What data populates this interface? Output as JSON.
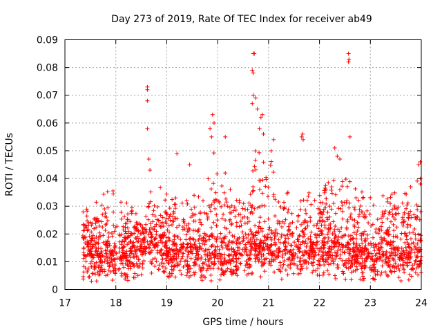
{
  "chart_data": {
    "type": "scatter",
    "title": "Day 273 of 2019, Rate Of TEC Index for receiver ab49",
    "xlabel": "GPS time / hours",
    "ylabel": "ROTI / TECUs",
    "xlim": [
      17,
      24
    ],
    "ylim": [
      0,
      0.09
    ],
    "x_ticks": [
      17,
      18,
      19,
      20,
      21,
      22,
      23,
      24
    ],
    "x_tick_labels": [
      "17",
      "18",
      "19",
      "20",
      "21",
      "22",
      "23",
      "24"
    ],
    "y_ticks": [
      0,
      0.01,
      0.02,
      0.03,
      0.04,
      0.05,
      0.06,
      0.07,
      0.08,
      0.09
    ],
    "y_tick_labels": [
      "0",
      "0.01",
      "0.02",
      "0.03",
      "0.04",
      "0.05",
      "0.06",
      "0.07",
      "0.08",
      "0.09"
    ],
    "grid": true,
    "marker": "+",
    "series": [
      {
        "name": "ROTI",
        "color": "#ff0000",
        "baseline_points": [
          [
            17.35,
            0.012
          ],
          [
            17.5,
            0.012
          ],
          [
            17.7,
            0.011
          ],
          [
            17.9,
            0.012
          ],
          [
            18.1,
            0.011
          ],
          [
            18.3,
            0.013
          ],
          [
            18.5,
            0.014
          ],
          [
            18.7,
            0.015
          ],
          [
            18.9,
            0.013
          ],
          [
            19.1,
            0.012
          ],
          [
            19.3,
            0.013
          ],
          [
            19.5,
            0.012
          ],
          [
            19.7,
            0.011
          ],
          [
            19.9,
            0.012
          ],
          [
            20.1,
            0.011
          ],
          [
            20.3,
            0.012
          ],
          [
            20.5,
            0.013
          ],
          [
            20.7,
            0.014
          ],
          [
            20.9,
            0.014
          ],
          [
            21.1,
            0.013
          ],
          [
            21.3,
            0.012
          ],
          [
            21.5,
            0.012
          ],
          [
            21.7,
            0.013
          ],
          [
            21.9,
            0.013
          ],
          [
            22.1,
            0.014
          ],
          [
            22.3,
            0.014
          ],
          [
            22.5,
            0.013
          ],
          [
            22.7,
            0.012
          ],
          [
            22.9,
            0.011
          ],
          [
            23.1,
            0.011
          ],
          [
            23.3,
            0.011
          ],
          [
            23.5,
            0.011
          ],
          [
            23.7,
            0.011
          ],
          [
            23.9,
            0.012
          ],
          [
            24.0,
            0.012
          ]
        ],
        "envelope_points": [
          [
            17.35,
            0.028
          ],
          [
            17.5,
            0.03
          ],
          [
            17.7,
            0.034
          ],
          [
            17.9,
            0.036
          ],
          [
            18.1,
            0.034
          ],
          [
            18.3,
            0.03
          ],
          [
            18.5,
            0.028
          ],
          [
            18.7,
            0.036
          ],
          [
            18.9,
            0.038
          ],
          [
            19.1,
            0.036
          ],
          [
            19.3,
            0.032
          ],
          [
            19.5,
            0.034
          ],
          [
            19.7,
            0.036
          ],
          [
            19.9,
            0.05
          ],
          [
            20.1,
            0.045
          ],
          [
            20.3,
            0.038
          ],
          [
            20.5,
            0.036
          ],
          [
            20.7,
            0.05
          ],
          [
            20.9,
            0.052
          ],
          [
            21.1,
            0.045
          ],
          [
            21.3,
            0.038
          ],
          [
            21.5,
            0.036
          ],
          [
            21.7,
            0.034
          ],
          [
            21.9,
            0.036
          ],
          [
            22.1,
            0.038
          ],
          [
            22.3,
            0.04
          ],
          [
            22.5,
            0.042
          ],
          [
            22.7,
            0.038
          ],
          [
            22.9,
            0.036
          ],
          [
            23.1,
            0.034
          ],
          [
            23.3,
            0.036
          ],
          [
            23.5,
            0.038
          ],
          [
            23.7,
            0.036
          ],
          [
            23.9,
            0.04
          ],
          [
            24.0,
            0.042
          ]
        ],
        "notable_points": [
          [
            18.62,
            0.073
          ],
          [
            18.62,
            0.072
          ],
          [
            18.62,
            0.068
          ],
          [
            18.62,
            0.058
          ],
          [
            18.65,
            0.047
          ],
          [
            18.67,
            0.043
          ],
          [
            19.2,
            0.049
          ],
          [
            19.45,
            0.045
          ],
          [
            19.85,
            0.058
          ],
          [
            19.9,
            0.063
          ],
          [
            19.93,
            0.06
          ],
          [
            19.88,
            0.055
          ],
          [
            20.15,
            0.055
          ],
          [
            20.7,
            0.085
          ],
          [
            20.72,
            0.085
          ],
          [
            20.68,
            0.079
          ],
          [
            20.7,
            0.078
          ],
          [
            20.7,
            0.07
          ],
          [
            20.75,
            0.069
          ],
          [
            20.68,
            0.067
          ],
          [
            20.78,
            0.065
          ],
          [
            20.85,
            0.062
          ],
          [
            20.88,
            0.063
          ],
          [
            20.82,
            0.058
          ],
          [
            20.9,
            0.056
          ],
          [
            21.1,
            0.054
          ],
          [
            21.05,
            0.05
          ],
          [
            21.65,
            0.055
          ],
          [
            21.67,
            0.056
          ],
          [
            21.68,
            0.054
          ],
          [
            22.3,
            0.051
          ],
          [
            22.35,
            0.048
          ],
          [
            22.4,
            0.047
          ],
          [
            22.57,
            0.085
          ],
          [
            22.58,
            0.083
          ],
          [
            22.57,
            0.082
          ],
          [
            22.6,
            0.055
          ],
          [
            23.95,
            0.045
          ],
          [
            23.98,
            0.046
          ]
        ]
      }
    ]
  }
}
